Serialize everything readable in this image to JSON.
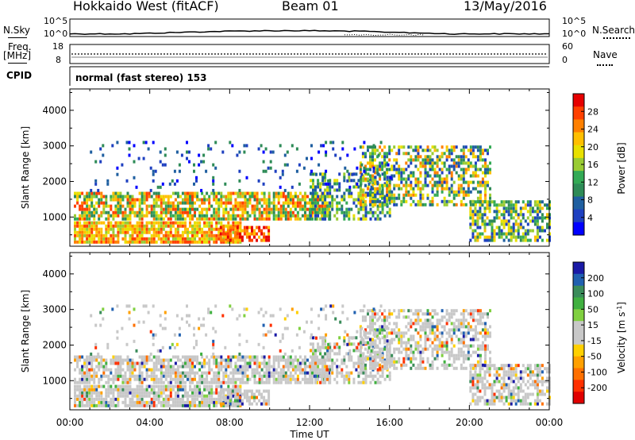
{
  "header": {
    "station": "Hokkaido West (fitACF)",
    "beam": "Beam 01",
    "date": "13/May/2016"
  },
  "left_labels": {
    "nsky": "N.Sky",
    "freq": "Freq.",
    "mhz": "[MHz]",
    "cpid": "CPID"
  },
  "right_labels": {
    "nsearch": "N.Search",
    "nave": "Nave"
  },
  "noise_axis": {
    "top": "10^5",
    "bottom": "10^0"
  },
  "freq_axis": {
    "top": "18",
    "bottom": "8"
  },
  "nave_axis": {
    "top": "60",
    "bottom": "0"
  },
  "cpid_text": "normal (fast stereo) 153",
  "power_colorbar": {
    "label": "Power [dB]",
    "ticks": [
      "28",
      "24",
      "20",
      "16",
      "12",
      "8",
      "4"
    ],
    "colors": [
      "#e60000",
      "#ff4000",
      "#ff8000",
      "#ffbf00",
      "#e8e000",
      "#99cc33",
      "#33aa55",
      "#2e8b57",
      "#1f5fa0",
      "#1e40c0",
      "#0000ff"
    ]
  },
  "velocity_colorbar": {
    "label": "Velocity [m s^-1]",
    "ticks": [
      "200",
      "100",
      "50",
      "15",
      "-15",
      "-50",
      "-100",
      "-200"
    ],
    "colors": [
      "#1a1aa6",
      "#2060b0",
      "#3a8c5a",
      "#40b040",
      "#80d040",
      "#c8c8c8",
      "#c8c8c8",
      "#ffd000",
      "#ffa000",
      "#ff7000",
      "#ff3000",
      "#e00000"
    ]
  },
  "chart_data": [
    {
      "type": "heatmap",
      "name": "power",
      "xlabel": "",
      "ylabel": "Slant Range [km]",
      "y_ticks": [
        "4000",
        "3000",
        "2000",
        "1000"
      ],
      "x_ticks": [
        "00:00",
        "04:00",
        "08:00",
        "12:00",
        "16:00",
        "20:00",
        "00:00"
      ],
      "ylim": [
        180,
        4600
      ],
      "xlim_hours": [
        0,
        24
      ]
    },
    {
      "type": "heatmap",
      "name": "velocity",
      "xlabel": "Time UT",
      "ylabel": "Slant Range [km]",
      "y_ticks": [
        "4000",
        "3000",
        "2000",
        "1000"
      ],
      "x_ticks": [
        "00:00",
        "04:00",
        "08:00",
        "12:00",
        "16:00",
        "20:00",
        "00:00"
      ],
      "ylim": [
        180,
        4600
      ],
      "xlim_hours": [
        0,
        24
      ]
    }
  ]
}
